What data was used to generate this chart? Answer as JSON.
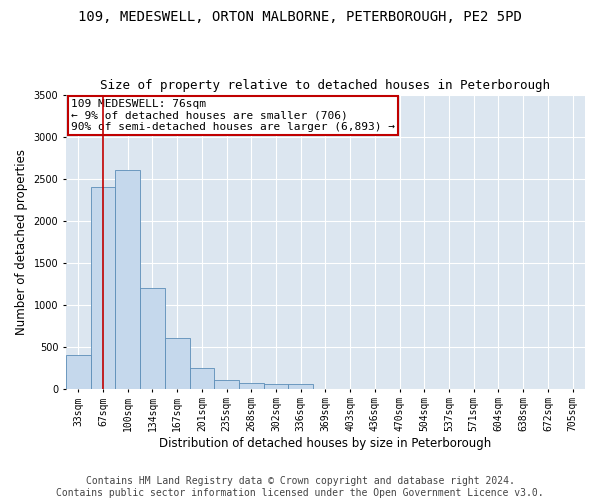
{
  "title_line1": "109, MEDESWELL, ORTON MALBORNE, PETERBOROUGH, PE2 5PD",
  "title_line2": "Size of property relative to detached houses in Peterborough",
  "xlabel": "Distribution of detached houses by size in Peterborough",
  "ylabel": "Number of detached properties",
  "categories": [
    "33sqm",
    "67sqm",
    "100sqm",
    "134sqm",
    "167sqm",
    "201sqm",
    "235sqm",
    "268sqm",
    "302sqm",
    "336sqm",
    "369sqm",
    "403sqm",
    "436sqm",
    "470sqm",
    "504sqm",
    "537sqm",
    "571sqm",
    "604sqm",
    "638sqm",
    "672sqm",
    "705sqm"
  ],
  "values": [
    400,
    2400,
    2600,
    1200,
    600,
    250,
    100,
    70,
    60,
    50,
    0,
    0,
    0,
    0,
    0,
    0,
    0,
    0,
    0,
    0,
    0
  ],
  "bar_color": "#c5d8ec",
  "bar_edge_color": "#5b8db8",
  "vline_x": 1,
  "vline_color": "#c00000",
  "annotation_text": "109 MEDESWELL: 76sqm\n← 9% of detached houses are smaller (706)\n90% of semi-detached houses are larger (6,893) →",
  "annotation_box_color": "#ffffff",
  "annotation_box_edge": "#c00000",
  "ylim": [
    0,
    3500
  ],
  "yticks": [
    0,
    500,
    1000,
    1500,
    2000,
    2500,
    3000,
    3500
  ],
  "background_color": "#ffffff",
  "grid_color": "#dce6f0",
  "footer_line1": "Contains HM Land Registry data © Crown copyright and database right 2024.",
  "footer_line2": "Contains public sector information licensed under the Open Government Licence v3.0.",
  "title_fontsize": 10,
  "subtitle_fontsize": 9,
  "axis_label_fontsize": 8.5,
  "tick_fontsize": 7,
  "footer_fontsize": 7,
  "annotation_fontsize": 8
}
